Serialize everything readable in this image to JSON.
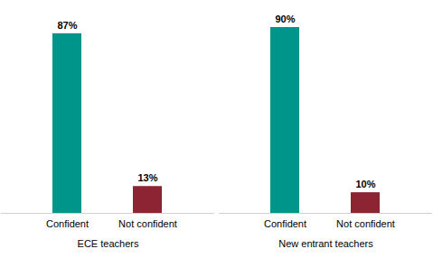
{
  "chart_data": {
    "type": "bar",
    "categories": [
      "ECE teachers",
      "New entrant teachers"
    ],
    "series": [
      {
        "name": "Confident",
        "color": "#00958a",
        "values": [
          87,
          90
        ],
        "value_labels": [
          "87%",
          "90%"
        ]
      },
      {
        "name": "Not confident",
        "color": "#8c2433",
        "values": [
          13,
          10
        ],
        "value_labels": [
          "13%",
          "10%"
        ]
      }
    ],
    "data_labels": true,
    "tick_labels": "x",
    "grid": false
  }
}
